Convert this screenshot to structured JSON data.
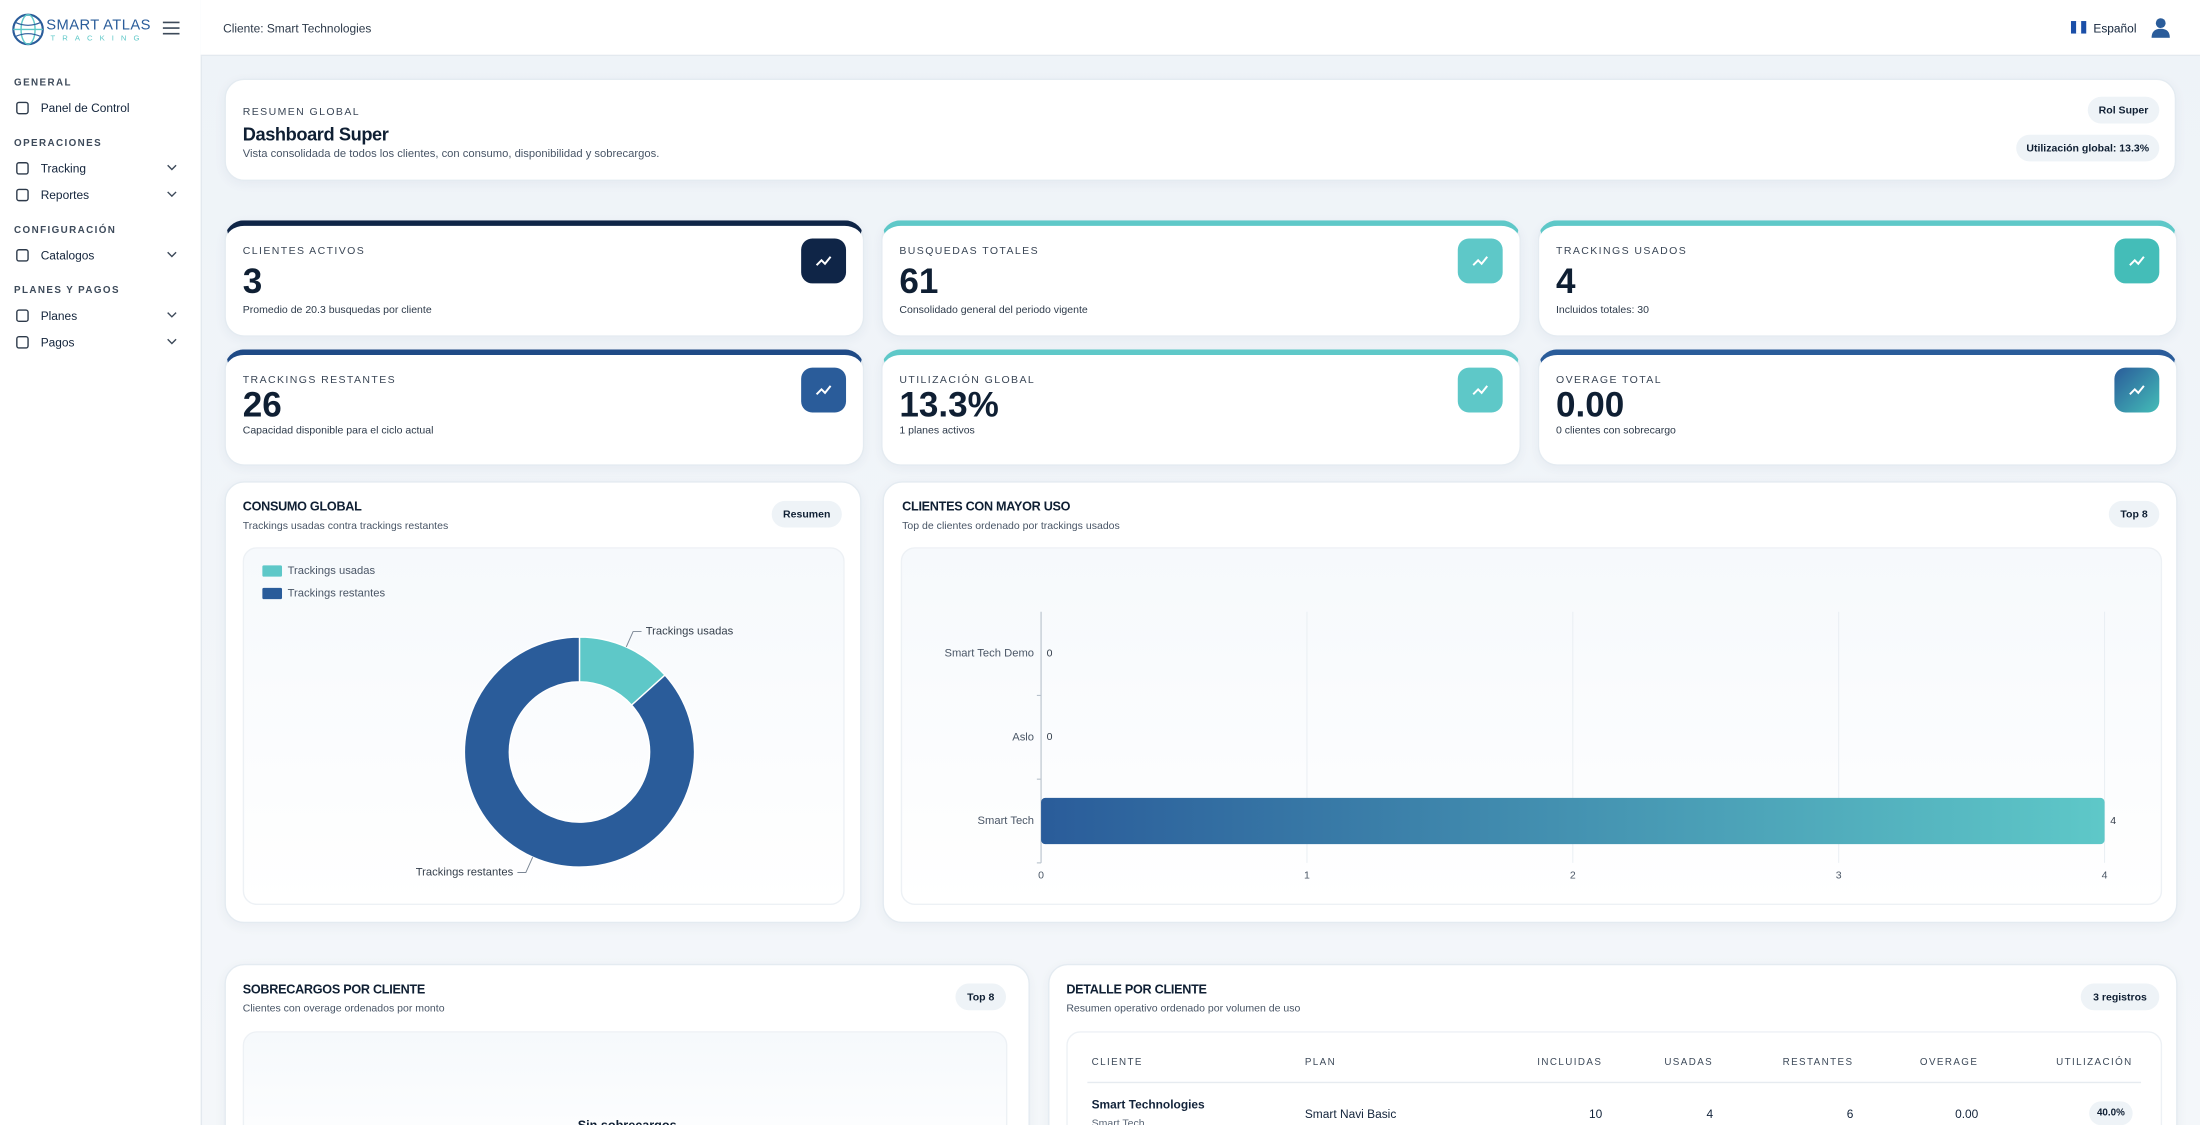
{
  "sidebar": {
    "brand": "SMART ATLAS",
    "brand_sub": "TRACKING",
    "sections": [
      {
        "title": "GENERAL",
        "items": [
          "Panel de Control"
        ]
      },
      {
        "title": "OPERACIONES",
        "items": [
          "Tracking",
          "Reportes"
        ]
      },
      {
        "title": "CONFIGURACIÓN",
        "items": [
          "Catalogos"
        ]
      },
      {
        "title": "PLANES Y PAGOS",
        "items": [
          "Planes",
          "Pagos"
        ]
      }
    ]
  },
  "topbar": {
    "client": "Cliente: Smart Technologies",
    "language": "Español"
  },
  "hero": {
    "eyebrow": "RESUMEN GLOBAL",
    "title": "Dashboard Super",
    "subtitle": "Vista consolidada de todos los clientes, con consumo, disponibilidad y sobrecargos.",
    "badges": [
      "Rol Super",
      "Utilización global: 13.3%"
    ]
  },
  "kpis": [
    {
      "label": "CLIENTES ACTIVOS",
      "value": "3",
      "note": "Promedio de 20.3 busquedas por cliente"
    },
    {
      "label": "BUSQUEDAS TOTALES",
      "value": "61",
      "note": "Consolidado general del periodo vigente"
    },
    {
      "label": "TRACKINGS USADOS",
      "value": "4",
      "note": "Incluidos totales: 30"
    },
    {
      "label": "TRACKINGS RESTANTES",
      "value": "26",
      "note": "Capacidad disponible para el ciclo actual"
    },
    {
      "label": "UTILIZACIÓN GLOBAL",
      "value": "13.3%",
      "note": "1 planes activos"
    },
    {
      "label": "OVERAGE TOTAL",
      "value": "0.00",
      "note": "0 clientes con sobrecargo"
    }
  ],
  "consumo": {
    "title": "CONSUMO GLOBAL",
    "subtitle": "Trackings usadas contra trackings restantes",
    "badge": "Resumen",
    "chart": {
      "type": "pie",
      "donut": true,
      "categories": [
        "Trackings usadas",
        "Trackings restantes"
      ],
      "values": [
        4,
        26
      ],
      "colors": [
        "#5ec8c8",
        "#2a5c9a"
      ],
      "legend": "top-left"
    }
  },
  "clientes": {
    "title": "CLIENTES CON MAYOR USO",
    "subtitle": "Top de clientes ordenado por trackings usados",
    "badge": "Top 8",
    "chart": {
      "type": "bar",
      "orientation": "horizontal",
      "categories": [
        "Smart Tech Demo",
        "Aslo",
        "Smart Tech"
      ],
      "values": [
        0,
        0,
        4
      ],
      "xlim": [
        0,
        4
      ],
      "xticks": [
        0,
        1,
        2,
        3,
        4
      ],
      "grid": true,
      "colors": [
        "#2a5c9a",
        "#5ec8c8"
      ]
    }
  },
  "sobrecargos": {
    "title": "SOBRECARGOS POR CLIENTE",
    "subtitle": "Clientes con overage ordenados por monto",
    "badge": "Top 8",
    "empty": "Sin sobrecargos"
  },
  "detalle": {
    "title": "DETALLE POR CLIENTE",
    "subtitle": "Resumen operativo ordenado por volumen de uso",
    "badge": "3 registros",
    "table": {
      "columns": [
        "CLIENTE",
        "PLAN",
        "INCLUIDAS",
        "USADAS",
        "RESTANTES",
        "OVERAGE",
        "UTILIZACIÓN"
      ],
      "rows": [
        {
          "cliente": "Smart Technologies",
          "alias": "Smart Tech",
          "plan": "Smart Navi Basic",
          "incluidas": 10,
          "usadas": 4,
          "restantes": 6,
          "overage": "0.00",
          "utilizacion": "40.0%"
        }
      ]
    }
  }
}
